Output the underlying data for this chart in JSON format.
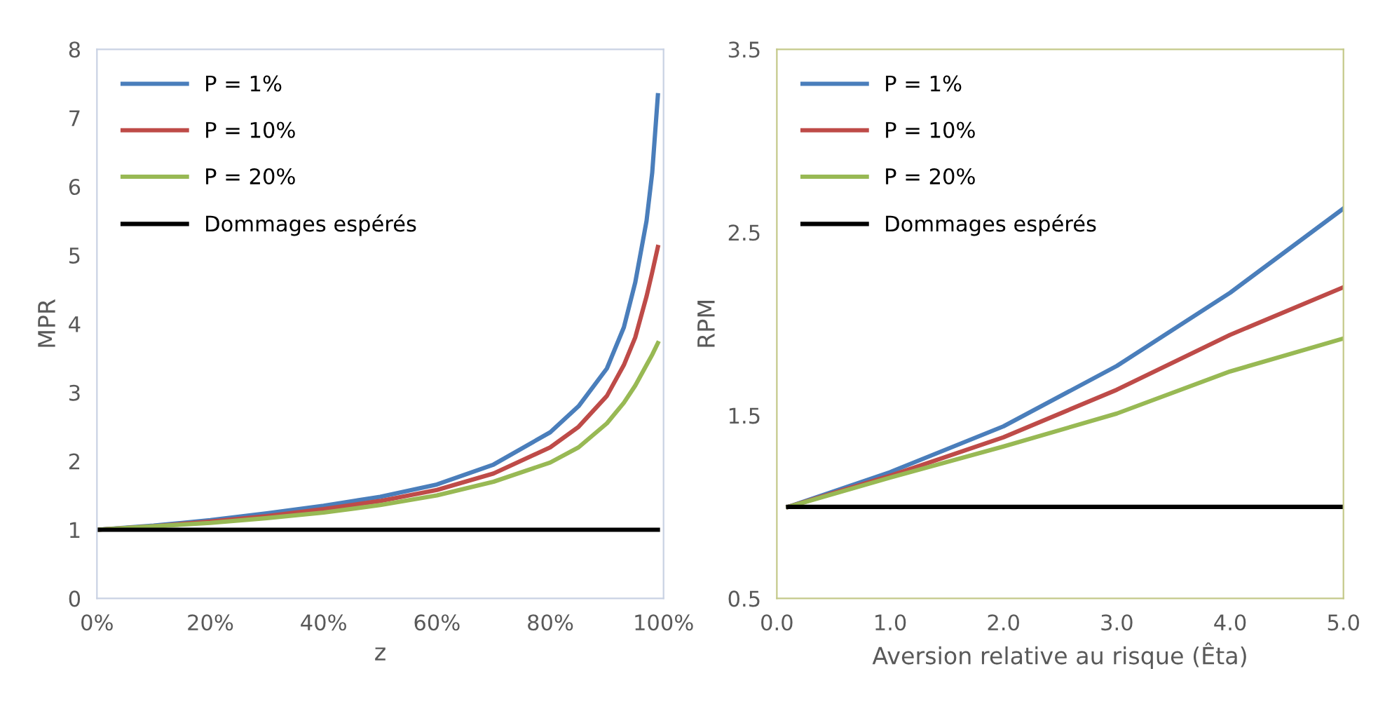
{
  "chart_data": [
    {
      "type": "line",
      "xlabel": "z",
      "ylabel": "MPR",
      "xlim": [
        0,
        100
      ],
      "ylim": [
        0,
        8
      ],
      "xticks": [
        {
          "value": 0,
          "label": "0%"
        },
        {
          "value": 20,
          "label": "20%"
        },
        {
          "value": 40,
          "label": "40%"
        },
        {
          "value": 60,
          "label": "60%"
        },
        {
          "value": 80,
          "label": "80%"
        },
        {
          "value": 100,
          "label": "100%"
        }
      ],
      "yticks": [
        0,
        1,
        2,
        3,
        4,
        5,
        6,
        7,
        8
      ],
      "grid": false,
      "legend": "top left",
      "series": [
        {
          "name": "P = 1%",
          "color": "#4a7ebb",
          "x": [
            0,
            10,
            20,
            30,
            40,
            50,
            60,
            70,
            80,
            85,
            90,
            93,
            95,
            97,
            98,
            99
          ],
          "values": [
            1,
            1.06,
            1.14,
            1.24,
            1.35,
            1.48,
            1.66,
            1.95,
            2.42,
            2.8,
            3.35,
            3.95,
            4.6,
            5.5,
            6.2,
            7.33
          ]
        },
        {
          "name": "P = 10%",
          "color": "#be4b48",
          "x": [
            0,
            10,
            20,
            30,
            40,
            50,
            60,
            70,
            80,
            85,
            90,
            93,
            95,
            97,
            98,
            99
          ],
          "values": [
            1,
            1.05,
            1.12,
            1.2,
            1.3,
            1.42,
            1.58,
            1.82,
            2.2,
            2.5,
            2.95,
            3.4,
            3.8,
            4.4,
            4.75,
            5.12
          ]
        },
        {
          "name": "P = 20%",
          "color": "#98b954",
          "x": [
            0,
            10,
            20,
            30,
            40,
            50,
            60,
            70,
            80,
            85,
            90,
            93,
            95,
            97,
            98,
            99
          ],
          "values": [
            1,
            1.05,
            1.1,
            1.17,
            1.25,
            1.36,
            1.5,
            1.7,
            1.98,
            2.2,
            2.55,
            2.85,
            3.1,
            3.4,
            3.55,
            3.72
          ]
        },
        {
          "name": "Dommages espérés",
          "color": "#000000",
          "x": [
            0,
            99
          ],
          "values": [
            1,
            1
          ]
        }
      ]
    },
    {
      "type": "line",
      "xlabel": "Aversion relative au risque (Êta)",
      "ylabel": "RPM",
      "xlim": [
        0,
        5
      ],
      "ylim": [
        0.5,
        3.5
      ],
      "xticks": [
        {
          "value": 0,
          "label": "0.0"
        },
        {
          "value": 1,
          "label": "1.0"
        },
        {
          "value": 2,
          "label": "2.0"
        },
        {
          "value": 3,
          "label": "3.0"
        },
        {
          "value": 4,
          "label": "4.0"
        },
        {
          "value": 5,
          "label": "5.0"
        }
      ],
      "yticks": [
        0.5,
        1.5,
        2.5,
        3.5
      ],
      "grid": false,
      "legend": "top left",
      "series": [
        {
          "name": "P = 1%",
          "color": "#4a7ebb",
          "x": [
            0.1,
            1,
            2,
            3,
            4,
            5
          ],
          "values": [
            1,
            1.19,
            1.44,
            1.77,
            2.17,
            2.63
          ]
        },
        {
          "name": "P = 10%",
          "color": "#be4b48",
          "x": [
            0.1,
            1,
            2,
            3,
            4,
            5
          ],
          "values": [
            1,
            1.17,
            1.38,
            1.64,
            1.94,
            2.2
          ]
        },
        {
          "name": "P = 20%",
          "color": "#98b954",
          "x": [
            0.1,
            1,
            2,
            3,
            4,
            5
          ],
          "values": [
            1,
            1.16,
            1.33,
            1.51,
            1.74,
            1.92
          ]
        },
        {
          "name": "Dommages espérés",
          "color": "#000000",
          "x": [
            0.1,
            5
          ],
          "values": [
            1,
            1
          ]
        }
      ]
    }
  ]
}
